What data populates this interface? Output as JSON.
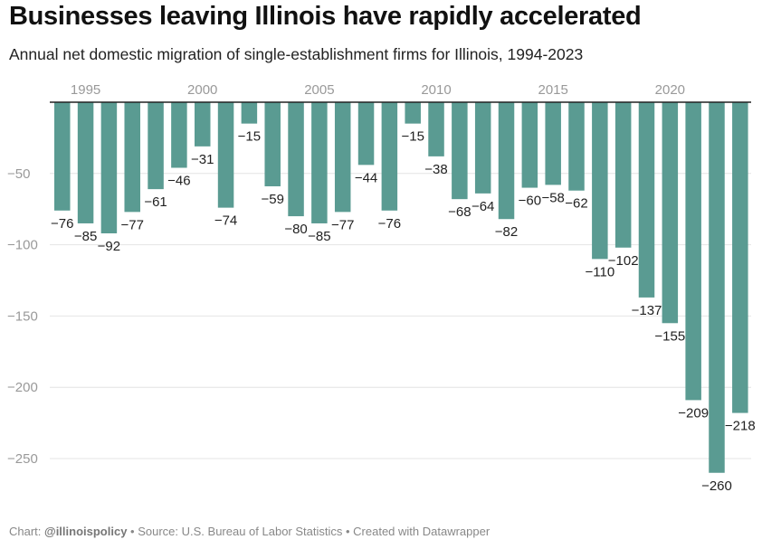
{
  "chart_data": {
    "type": "bar",
    "title": "Businesses leaving Illinois have rapidly accelerated",
    "subtitle": "Annual net domestic migration of single-establishment firms for Illinois, 1994-2023",
    "categories": [
      1994,
      1995,
      1996,
      1997,
      1998,
      1999,
      2000,
      2001,
      2002,
      2003,
      2004,
      2005,
      2006,
      2007,
      2008,
      2009,
      2010,
      2011,
      2012,
      2013,
      2014,
      2015,
      2016,
      2017,
      2018,
      2019,
      2020,
      2021,
      2022,
      2023
    ],
    "values": [
      -76,
      -85,
      -92,
      -77,
      -61,
      -46,
      -31,
      -74,
      -15,
      -59,
      -80,
      -85,
      -77,
      -44,
      -76,
      -15,
      -38,
      -68,
      -64,
      -82,
      -60,
      -58,
      -62,
      -110,
      -102,
      -137,
      -155,
      -209,
      -260,
      -218
    ],
    "x_ticks": [
      1995,
      2000,
      2005,
      2010,
      2015,
      2020
    ],
    "y_ticks": [
      -50,
      -100,
      -150,
      -200,
      -250
    ],
    "ylim": [
      -270,
      0
    ],
    "grid": true,
    "xaxis_position": "top",
    "data_labels": true,
    "colors": {
      "bar": "#5a9b92",
      "grid": "#e4e4e4",
      "axis": "#222222"
    }
  },
  "footer": {
    "chart_prefix": "Chart: ",
    "chart_by": "@illinoispolicy",
    "source": " • Source: U.S. Bureau of Labor Statistics • Created with Datawrapper"
  }
}
